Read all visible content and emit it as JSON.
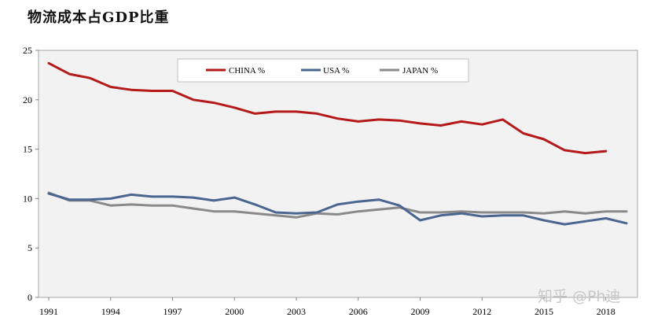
{
  "title": "物流成本占GDP比重",
  "watermark": "知乎 @Ph迪",
  "chart_data": {
    "type": "line",
    "title": "物流成本占GDP比重",
    "xlabel": "",
    "ylabel": "",
    "ylim": [
      0,
      25
    ],
    "yticks": [
      0,
      5,
      10,
      15,
      20,
      25
    ],
    "xlim": [
      1991,
      2019
    ],
    "xticks": [
      1991,
      1994,
      1997,
      2000,
      2003,
      2006,
      2009,
      2012,
      2015,
      2018
    ],
    "grid": false,
    "legend": "top-center",
    "colors": {
      "CHINA %": "#b51a1a",
      "USA %": "#4a6590",
      "JAPAN %": "#8a8a8a"
    },
    "series": [
      {
        "name": "CHINA %",
        "x": [
          1991,
          1992,
          1993,
          1994,
          1995,
          1996,
          1997,
          1998,
          1999,
          2000,
          2001,
          2002,
          2003,
          2004,
          2005,
          2006,
          2007,
          2008,
          2009,
          2010,
          2011,
          2012,
          2013,
          2014,
          2015,
          2016,
          2017,
          2018
        ],
        "values": [
          23.7,
          22.6,
          22.2,
          21.3,
          21.0,
          20.9,
          20.9,
          20.0,
          19.7,
          19.2,
          18.6,
          18.8,
          18.8,
          18.6,
          18.1,
          17.8,
          18.0,
          17.9,
          17.6,
          17.4,
          17.8,
          17.5,
          18.0,
          16.6,
          16.0,
          14.9,
          14.6,
          14.8
        ]
      },
      {
        "name": "USA %",
        "x": [
          1991,
          1992,
          1993,
          1994,
          1995,
          1996,
          1997,
          1998,
          1999,
          2000,
          2001,
          2002,
          2003,
          2004,
          2005,
          2006,
          2007,
          2008,
          2009,
          2010,
          2011,
          2012,
          2013,
          2014,
          2015,
          2016,
          2017,
          2018,
          2019
        ],
        "values": [
          10.5,
          9.9,
          9.9,
          10.0,
          10.4,
          10.2,
          10.2,
          10.1,
          9.8,
          10.1,
          9.4,
          8.6,
          8.5,
          8.6,
          9.4,
          9.7,
          9.9,
          9.3,
          7.8,
          8.3,
          8.5,
          8.2,
          8.3,
          8.3,
          7.8,
          7.4,
          7.7,
          8.0,
          7.5
        ]
      },
      {
        "name": "JAPAN %",
        "x": [
          1991,
          1992,
          1993,
          1994,
          1995,
          1996,
          1997,
          1998,
          1999,
          2000,
          2001,
          2002,
          2003,
          2004,
          2005,
          2006,
          2007,
          2008,
          2009,
          2010,
          2011,
          2012,
          2013,
          2014,
          2015,
          2016,
          2017,
          2018,
          2019
        ],
        "values": [
          10.6,
          9.8,
          9.8,
          9.3,
          9.4,
          9.3,
          9.3,
          9.0,
          8.7,
          8.7,
          8.5,
          8.3,
          8.1,
          8.5,
          8.4,
          8.7,
          8.9,
          9.1,
          8.6,
          8.6,
          8.7,
          8.6,
          8.6,
          8.6,
          8.5,
          8.7,
          8.5,
          8.7,
          8.7
        ]
      }
    ]
  }
}
